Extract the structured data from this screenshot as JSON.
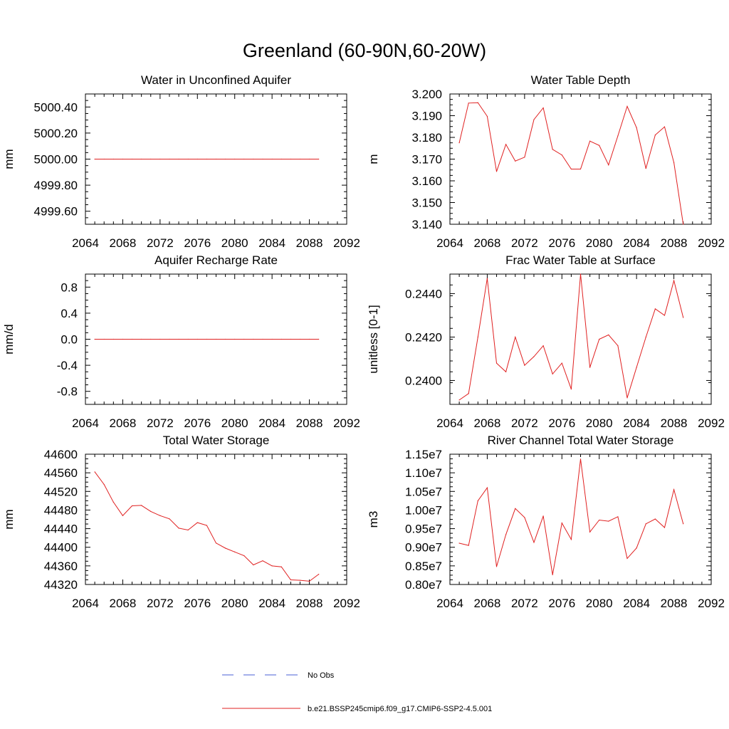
{
  "figure": {
    "title": "Greenland (60-90N,60-20W)",
    "legend": [
      {
        "label": "No Obs",
        "color": "#4a5fd6",
        "style": "dashed"
      },
      {
        "label": "b.e21.BSSP245cmip6.f09_g17.CMIP6-SSP2-4.5.001",
        "color": "#e02020",
        "style": "solid"
      }
    ]
  },
  "chart_data": [
    {
      "type": "line",
      "title": "Water in Unconfined Aquifer",
      "ylabel": "mm",
      "xlim": [
        2064,
        2092
      ],
      "ylim": [
        4999.5,
        5000.5
      ],
      "xticks": [
        2064,
        2068,
        2072,
        2076,
        2080,
        2084,
        2088,
        2092
      ],
      "yticks": [
        4999.6,
        4999.8,
        5000.0,
        5000.2,
        5000.4
      ],
      "ydecimals": 2,
      "color": "#e02020",
      "x": [
        2065,
        2066,
        2067,
        2068,
        2069,
        2070,
        2071,
        2072,
        2073,
        2074,
        2075,
        2076,
        2077,
        2078,
        2079,
        2080,
        2081,
        2082,
        2083,
        2084,
        2085,
        2086,
        2087,
        2088,
        2089
      ],
      "y": [
        5000,
        5000,
        5000,
        5000,
        5000,
        5000,
        5000,
        5000,
        5000,
        5000,
        5000,
        5000,
        5000,
        5000,
        5000,
        5000,
        5000,
        5000,
        5000,
        5000,
        5000,
        5000,
        5000,
        5000,
        5000
      ]
    },
    {
      "type": "line",
      "title": "Water Table Depth",
      "ylabel": "m",
      "xlim": [
        2064,
        2092
      ],
      "ylim": [
        3.14,
        3.2
      ],
      "xticks": [
        2064,
        2068,
        2072,
        2076,
        2080,
        2084,
        2088,
        2092
      ],
      "yticks": [
        3.14,
        3.15,
        3.16,
        3.17,
        3.18,
        3.19,
        3.2
      ],
      "ydecimals": 3,
      "color": "#e02020",
      "x": [
        2065,
        2066,
        2067,
        2068,
        2069,
        2070,
        2071,
        2072,
        2073,
        2074,
        2075,
        2076,
        2077,
        2078,
        2079,
        2080,
        2081,
        2082,
        2083,
        2084,
        2085,
        2086,
        2087,
        2088,
        2089
      ],
      "y": [
        3.1775,
        3.1958,
        3.196,
        3.1897,
        3.1643,
        3.1768,
        3.1691,
        3.1709,
        3.1882,
        3.1936,
        3.1745,
        3.1719,
        3.1654,
        3.1654,
        3.1783,
        3.1763,
        3.1673,
        3.1807,
        3.1943,
        3.1845,
        3.1657,
        3.1811,
        3.1849,
        3.1684,
        3.14
      ]
    },
    {
      "type": "line",
      "title": "Aquifer Recharge Rate",
      "ylabel": "mm/d",
      "xlim": [
        2064,
        2092
      ],
      "ylim": [
        -1.0,
        1.0
      ],
      "xticks": [
        2064,
        2068,
        2072,
        2076,
        2080,
        2084,
        2088,
        2092
      ],
      "yticks": [
        -0.8,
        -0.4,
        0.0,
        0.4,
        0.8
      ],
      "ydecimals": 1,
      "color": "#e02020",
      "x": [
        2065,
        2066,
        2067,
        2068,
        2069,
        2070,
        2071,
        2072,
        2073,
        2074,
        2075,
        2076,
        2077,
        2078,
        2079,
        2080,
        2081,
        2082,
        2083,
        2084,
        2085,
        2086,
        2087,
        2088,
        2089
      ],
      "y": [
        0,
        0,
        0,
        0,
        0,
        0,
        0,
        0,
        0,
        0,
        0,
        0,
        0,
        0,
        0,
        0,
        0,
        0,
        0,
        0,
        0,
        0,
        0,
        0,
        0
      ]
    },
    {
      "type": "line",
      "title": "Frac Water Table at Surface",
      "ylabel": "unitless [0-1]",
      "xlim": [
        2064,
        2092
      ],
      "ylim": [
        0.2389,
        0.2449
      ],
      "xticks": [
        2064,
        2068,
        2072,
        2076,
        2080,
        2084,
        2088,
        2092
      ],
      "yticks": [
        0.24,
        0.242,
        0.244
      ],
      "ydecimals": 4,
      "color": "#e02020",
      "x": [
        2065,
        2066,
        2067,
        2068,
        2069,
        2070,
        2071,
        2072,
        2073,
        2074,
        2075,
        2076,
        2077,
        2078,
        2079,
        2080,
        2081,
        2082,
        2083,
        2084,
        2085,
        2086,
        2087,
        2088,
        2089
      ],
      "y": [
        0.2391,
        0.2394,
        0.242,
        0.2447,
        0.2408,
        0.2404,
        0.242,
        0.2407,
        0.2411,
        0.2416,
        0.2403,
        0.2408,
        0.2396,
        0.2449,
        0.2406,
        0.2419,
        0.2421,
        0.2416,
        0.2392,
        0.2406,
        0.242,
        0.2433,
        0.243,
        0.2446,
        0.2429
      ]
    },
    {
      "type": "line",
      "title": "Total Water Storage",
      "ylabel": "mm",
      "xlim": [
        2064,
        2092
      ],
      "ylim": [
        44320,
        44600
      ],
      "xticks": [
        2064,
        2068,
        2072,
        2076,
        2080,
        2084,
        2088,
        2092
      ],
      "yticks": [
        44320,
        44360,
        44400,
        44440,
        44480,
        44520,
        44560,
        44600
      ],
      "ydecimals": 0,
      "color": "#e02020",
      "x": [
        2065,
        2066,
        2067,
        2068,
        2069,
        2070,
        2071,
        2072,
        2073,
        2074,
        2075,
        2076,
        2077,
        2078,
        2079,
        2080,
        2081,
        2082,
        2083,
        2084,
        2085,
        2086,
        2087,
        2088,
        2089
      ],
      "y": [
        44562,
        44535,
        44497,
        44468,
        44489,
        44490,
        44477,
        44468,
        44461,
        44441,
        44437,
        44453,
        44447,
        44409,
        44398,
        44390,
        44382,
        44362,
        44371,
        44360,
        44358,
        44330,
        44329,
        44327,
        44342
      ]
    },
    {
      "type": "line",
      "title": "River Channel Total Water Storage",
      "ylabel": "m3",
      "xlim": [
        2064,
        2092
      ],
      "ylim": [
        8000000,
        11500000
      ],
      "xticks": [
        2064,
        2068,
        2072,
        2076,
        2080,
        2084,
        2088,
        2092
      ],
      "yticks": [
        8000000,
        8500000,
        9000000,
        9500000,
        10000000,
        10500000,
        11000000,
        11500000
      ],
      "ytick_labels": [
        "0.80e7",
        "0.85e7",
        "0.90e7",
        "0.95e7",
        "1.00e7",
        "1.05e7",
        "1.10e7",
        "1.15e7"
      ],
      "color": "#e02020",
      "x": [
        2065,
        2066,
        2067,
        2068,
        2069,
        2070,
        2071,
        2072,
        2073,
        2074,
        2075,
        2076,
        2077,
        2078,
        2079,
        2080,
        2081,
        2082,
        2083,
        2084,
        2085,
        2086,
        2087,
        2088,
        2089
      ],
      "y": [
        9110000,
        9050000,
        10250000,
        10600000,
        8480000,
        9340000,
        10040000,
        9800000,
        9130000,
        9840000,
        8260000,
        9650000,
        9210000,
        11370000,
        9410000,
        9730000,
        9700000,
        9820000,
        8700000,
        8980000,
        9630000,
        9760000,
        9530000,
        10550000,
        9630000
      ]
    }
  ]
}
